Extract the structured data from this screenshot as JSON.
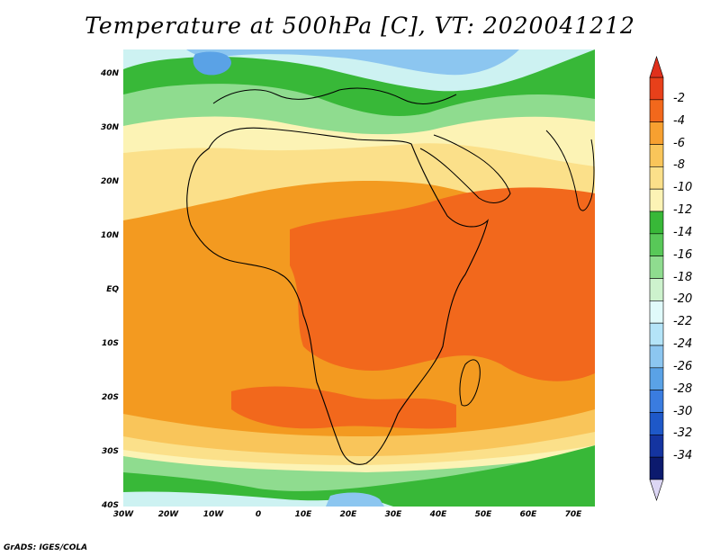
{
  "title": "Temperature at 500hPa [C], VT: 2020041212",
  "credit": "GrADS: IGES/COLA",
  "lat_labels": [
    "40N",
    "30N",
    "20N",
    "10N",
    "EQ",
    "10S",
    "20S",
    "30S",
    "40S"
  ],
  "lon_labels": [
    "30W",
    "20W",
    "10W",
    "0",
    "10E",
    "20E",
    "30E",
    "40E",
    "50E",
    "60E",
    "70E"
  ],
  "colorbar": {
    "labels": [
      "-2",
      "-4",
      "-6",
      "-8",
      "-10",
      "-12",
      "-14",
      "-16",
      "-18",
      "-20",
      "-22",
      "-24",
      "-26",
      "-28",
      "-30",
      "-32",
      "-34"
    ],
    "colors": [
      "#e8401a",
      "#f2681c",
      "#f7a030",
      "#f9c55a",
      "#fbe08a",
      "#fcf3b5",
      "#38b838",
      "#58c858",
      "#8fdc8f",
      "#cdf2cd",
      "#e0fafa",
      "#b4e4f8",
      "#8cc6f0",
      "#5aa2e6",
      "#3a7ce0",
      "#1e58c8",
      "#1434a0",
      "#0c1a6e"
    ],
    "top_color": "#e0301c",
    "bottom_color": "#dcd6f4"
  },
  "map_colors": {
    "cold_blue": "#5aa2e6",
    "light_blue": "#8cc6f0",
    "pale_cyan": "#cdf2f2",
    "green": "#38b838",
    "light_green": "#8fdc8f",
    "pale_yellow": "#fcf3b5",
    "yellow": "#fbe08a",
    "light_orange": "#f9c55a",
    "orange": "#f39a20",
    "deep_orange": "#f2681c",
    "coast": "#000000"
  }
}
